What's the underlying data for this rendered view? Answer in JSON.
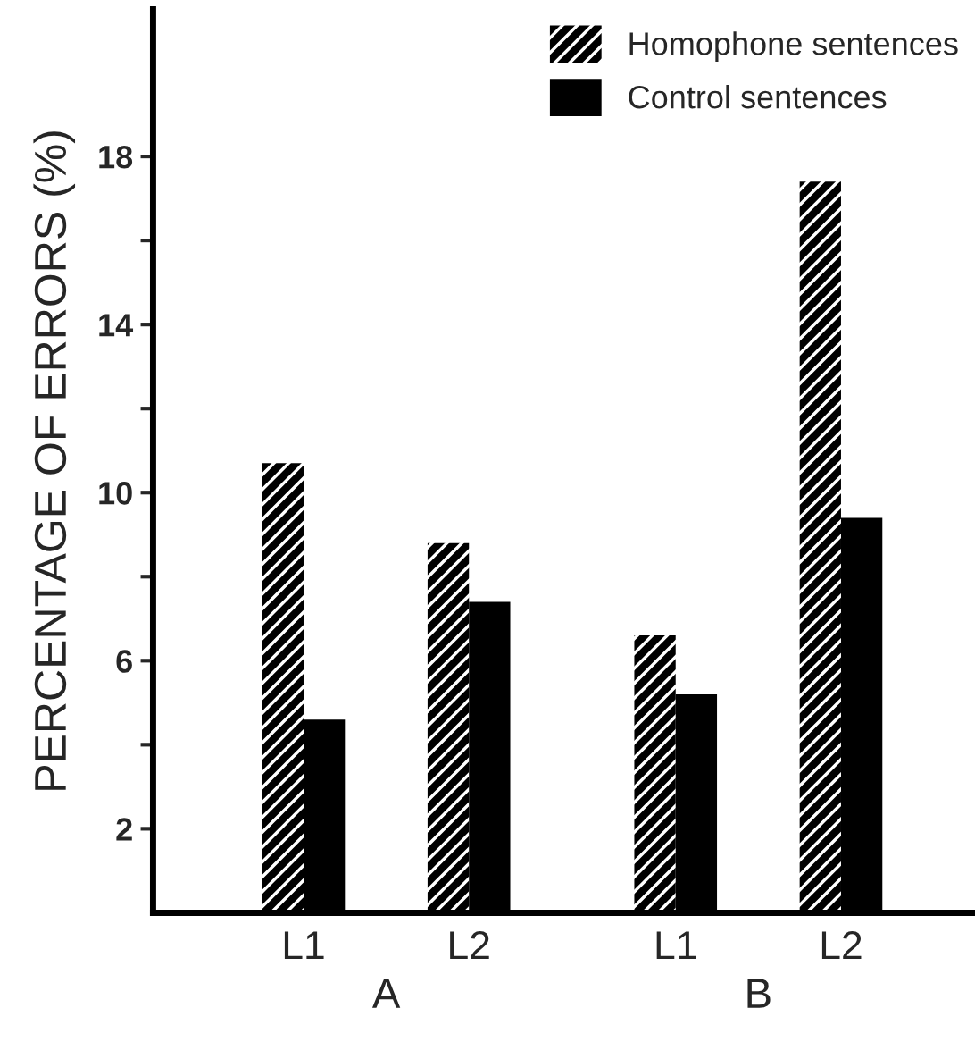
{
  "chart_data": {
    "type": "bar",
    "ylabel": "PERCENTAGE OF ERRORS (%)",
    "categories": [
      "L1",
      "L2",
      "L1",
      "L2"
    ],
    "series": [
      {
        "name": "Homophone sentences",
        "color": "#ffffff",
        "values": [
          10.7,
          8.8,
          6.6,
          17.4
        ]
      },
      {
        "name": "Control sentences",
        "color": "#000000",
        "values": [
          4.6,
          7.4,
          5.2,
          9.4
        ]
      }
    ],
    "annotations": [
      "A",
      "B"
    ],
    "ylim": [
      0,
      21.5
    ],
    "yticks": [
      2,
      {
        "value": 4,
        "label": null
      },
      6,
      {
        "value": 8,
        "label": null
      },
      10,
      {
        "value": 12,
        "label": null
      },
      14,
      {
        "value": 16,
        "label": null
      },
      18
    ],
    "grid": false,
    "legend": "top right"
  }
}
